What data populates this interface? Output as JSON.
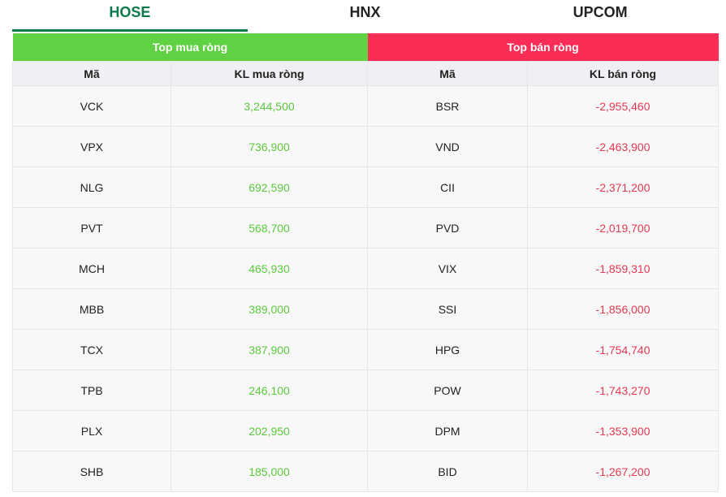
{
  "tabs": [
    "HOSE",
    "HNX",
    "UPCOM"
  ],
  "buy": {
    "title": "Top mua ròng",
    "headers": [
      "Mã",
      "KL mua ròng"
    ],
    "rows": [
      [
        "VCK",
        "3,244,500"
      ],
      [
        "VPX",
        "736,900"
      ],
      [
        "NLG",
        "692,590"
      ],
      [
        "PVT",
        "568,700"
      ],
      [
        "MCH",
        "465,930"
      ],
      [
        "MBB",
        "389,000"
      ],
      [
        "TCX",
        "387,900"
      ],
      [
        "TPB",
        "246,100"
      ],
      [
        "PLX",
        "202,950"
      ],
      [
        "SHB",
        "185,000"
      ]
    ]
  },
  "sell": {
    "title": "Top bán ròng",
    "headers": [
      "Mã",
      "KL bán ròng"
    ],
    "rows": [
      [
        "BSR",
        "-2,955,460"
      ],
      [
        "VND",
        "-2,463,900"
      ],
      [
        "CII",
        "-2,371,200"
      ],
      [
        "PVD",
        "-2,019,700"
      ],
      [
        "VIX",
        "-1,859,310"
      ],
      [
        "SSI",
        "-1,856,000"
      ],
      [
        "HPG",
        "-1,754,740"
      ],
      [
        "POW",
        "-1,743,270"
      ],
      [
        "DPM",
        "-1,353,900"
      ],
      [
        "BID",
        "-1,267,200"
      ]
    ]
  }
}
